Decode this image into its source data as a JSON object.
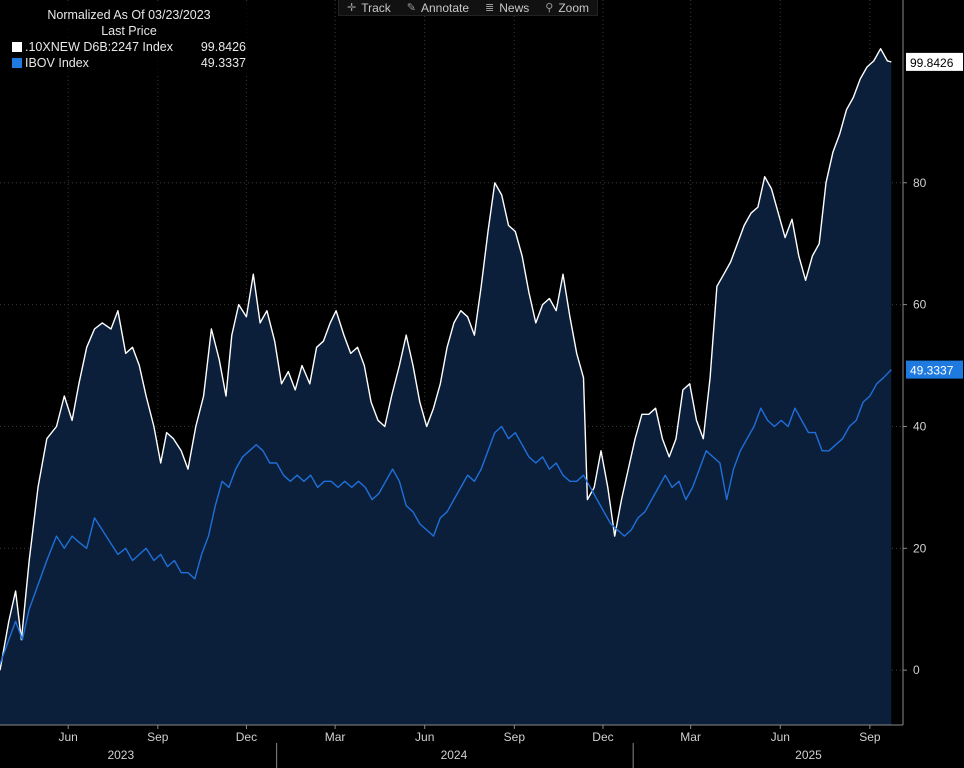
{
  "toolbar": {
    "items": [
      {
        "label": "Track",
        "icon": "crosshair-icon"
      },
      {
        "label": "Annotate",
        "icon": "pencil-icon"
      },
      {
        "label": "News",
        "icon": "news-icon"
      },
      {
        "label": "Zoom",
        "icon": "magnifier-icon"
      }
    ]
  },
  "legend": {
    "header": "Normalized As Of 03/23/2023",
    "subheader": "Last Price",
    "entries": [
      {
        "name": ".10XNEW D6B:2247 Index",
        "value": "99.8426",
        "color": "#ffffff"
      },
      {
        "name": "IBOV Index",
        "value": "49.3337",
        "color": "#1f7ae0"
      }
    ]
  },
  "colors": {
    "background": "#000000",
    "area_fill": "#0b1f3a",
    "series1_line": "#ffffff",
    "series2_line": "#1f6fd8",
    "badge2_bg": "#1f7ae0",
    "grid": "#3a3a3a"
  },
  "chart_data": {
    "type": "area",
    "title": "",
    "xlabel": "",
    "ylabel": "",
    "ylim": [
      -9,
      110
    ],
    "xlim": [
      "2023-03-23",
      "2025-10-05"
    ],
    "grid": true,
    "legend_position": "top-left",
    "y_ticks": [
      0,
      20,
      40,
      60,
      80
    ],
    "x_ticks": [
      {
        "label": "Jun",
        "date": "2023-06-01"
      },
      {
        "label": "Sep",
        "date": "2023-09-01"
      },
      {
        "label": "Dec",
        "date": "2023-12-01"
      },
      {
        "label": "Mar",
        "date": "2024-03-01"
      },
      {
        "label": "Jun",
        "date": "2024-06-01"
      },
      {
        "label": "Sep",
        "date": "2024-09-01"
      },
      {
        "label": "Dec",
        "date": "2024-12-01"
      },
      {
        "label": "Mar",
        "date": "2025-03-01"
      },
      {
        "label": "Jun",
        "date": "2025-06-01"
      },
      {
        "label": "Sep",
        "date": "2025-09-01"
      }
    ],
    "year_labels": [
      {
        "label": "2023",
        "date": "2023-07-25"
      },
      {
        "label": "2024",
        "date": "2024-07-01"
      },
      {
        "label": "2025",
        "date": "2025-06-30"
      }
    ],
    "year_separators": [
      "2024-01-01",
      "2025-01-01"
    ],
    "last_value_labels": [
      "99.8426",
      "49.3337"
    ],
    "series": [
      {
        "name": ".10XNEW D6B:2247 Index",
        "points": [
          [
            "2023-03-23",
            0
          ],
          [
            "2023-04-01",
            8
          ],
          [
            "2023-04-08",
            13
          ],
          [
            "2023-04-14",
            5
          ],
          [
            "2023-04-22",
            18
          ],
          [
            "2023-05-01",
            30
          ],
          [
            "2023-05-10",
            38
          ],
          [
            "2023-05-20",
            40
          ],
          [
            "2023-05-28",
            45
          ],
          [
            "2023-06-05",
            41
          ],
          [
            "2023-06-12",
            47
          ],
          [
            "2023-06-20",
            53
          ],
          [
            "2023-06-28",
            56
          ],
          [
            "2023-07-06",
            57
          ],
          [
            "2023-07-15",
            56
          ],
          [
            "2023-07-22",
            59
          ],
          [
            "2023-07-30",
            52
          ],
          [
            "2023-08-06",
            53
          ],
          [
            "2023-08-13",
            50
          ],
          [
            "2023-08-20",
            45
          ],
          [
            "2023-08-28",
            40
          ],
          [
            "2023-09-04",
            34
          ],
          [
            "2023-09-10",
            39
          ],
          [
            "2023-09-17",
            38
          ],
          [
            "2023-09-25",
            36
          ],
          [
            "2023-10-02",
            33
          ],
          [
            "2023-10-10",
            40
          ],
          [
            "2023-10-18",
            45
          ],
          [
            "2023-10-26",
            56
          ],
          [
            "2023-11-03",
            51
          ],
          [
            "2023-11-10",
            45
          ],
          [
            "2023-11-16",
            55
          ],
          [
            "2023-11-23",
            60
          ],
          [
            "2023-12-01",
            58
          ],
          [
            "2023-12-08",
            65
          ],
          [
            "2023-12-15",
            57
          ],
          [
            "2023-12-22",
            59
          ],
          [
            "2023-12-30",
            54
          ],
          [
            "2024-01-06",
            47
          ],
          [
            "2024-01-13",
            49
          ],
          [
            "2024-01-20",
            46
          ],
          [
            "2024-01-27",
            50
          ],
          [
            "2024-02-04",
            47
          ],
          [
            "2024-02-11",
            53
          ],
          [
            "2024-02-18",
            54
          ],
          [
            "2024-02-25",
            57
          ],
          [
            "2024-03-02",
            59
          ],
          [
            "2024-03-10",
            55
          ],
          [
            "2024-03-17",
            52
          ],
          [
            "2024-03-24",
            53
          ],
          [
            "2024-03-31",
            50
          ],
          [
            "2024-04-07",
            44
          ],
          [
            "2024-04-14",
            41
          ],
          [
            "2024-04-21",
            40
          ],
          [
            "2024-04-28",
            45
          ],
          [
            "2024-05-06",
            50
          ],
          [
            "2024-05-13",
            55
          ],
          [
            "2024-05-20",
            50
          ],
          [
            "2024-05-27",
            44
          ],
          [
            "2024-06-03",
            40
          ],
          [
            "2024-06-10",
            43
          ],
          [
            "2024-06-17",
            47
          ],
          [
            "2024-06-24",
            53
          ],
          [
            "2024-07-01",
            57
          ],
          [
            "2024-07-08",
            59
          ],
          [
            "2024-07-15",
            58
          ],
          [
            "2024-07-22",
            55
          ],
          [
            "2024-07-29",
            63
          ],
          [
            "2024-08-05",
            72
          ],
          [
            "2024-08-12",
            80
          ],
          [
            "2024-08-19",
            78
          ],
          [
            "2024-08-26",
            73
          ],
          [
            "2024-09-02",
            72
          ],
          [
            "2024-09-09",
            68
          ],
          [
            "2024-09-16",
            62
          ],
          [
            "2024-09-23",
            57
          ],
          [
            "2024-09-30",
            60
          ],
          [
            "2024-10-07",
            61
          ],
          [
            "2024-10-14",
            59
          ],
          [
            "2024-10-21",
            65
          ],
          [
            "2024-10-28",
            58
          ],
          [
            "2024-11-04",
            52
          ],
          [
            "2024-11-11",
            48
          ],
          [
            "2024-11-15",
            28
          ],
          [
            "2024-11-22",
            30
          ],
          [
            "2024-11-29",
            36
          ],
          [
            "2024-12-06",
            30
          ],
          [
            "2024-12-13",
            22
          ],
          [
            "2024-12-20",
            28
          ],
          [
            "2024-12-27",
            33
          ],
          [
            "2025-01-03",
            38
          ],
          [
            "2025-01-10",
            42
          ],
          [
            "2025-01-17",
            42
          ],
          [
            "2025-01-24",
            43
          ],
          [
            "2025-01-31",
            38
          ],
          [
            "2025-02-07",
            35
          ],
          [
            "2025-02-14",
            38
          ],
          [
            "2025-02-21",
            46
          ],
          [
            "2025-02-28",
            47
          ],
          [
            "2025-03-07",
            41
          ],
          [
            "2025-03-14",
            38
          ],
          [
            "2025-03-21",
            48
          ],
          [
            "2025-03-28",
            63
          ],
          [
            "2025-04-04",
            65
          ],
          [
            "2025-04-11",
            67
          ],
          [
            "2025-04-18",
            70
          ],
          [
            "2025-04-25",
            73
          ],
          [
            "2025-05-02",
            75
          ],
          [
            "2025-05-09",
            76
          ],
          [
            "2025-05-16",
            81
          ],
          [
            "2025-05-23",
            79
          ],
          [
            "2025-05-30",
            75
          ],
          [
            "2025-06-06",
            71
          ],
          [
            "2025-06-13",
            74
          ],
          [
            "2025-06-20",
            68
          ],
          [
            "2025-06-27",
            64
          ],
          [
            "2025-07-04",
            68
          ],
          [
            "2025-07-11",
            70
          ],
          [
            "2025-07-18",
            80
          ],
          [
            "2025-07-25",
            85
          ],
          [
            "2025-08-01",
            88
          ],
          [
            "2025-08-08",
            92
          ],
          [
            "2025-08-15",
            94
          ],
          [
            "2025-08-22",
            97
          ],
          [
            "2025-08-29",
            99
          ],
          [
            "2025-09-05",
            100
          ],
          [
            "2025-09-12",
            102
          ],
          [
            "2025-09-19",
            100
          ],
          [
            "2025-09-23",
            99.8426
          ]
        ]
      },
      {
        "name": "IBOV Index",
        "points": [
          [
            "2023-03-23",
            1
          ],
          [
            "2023-04-01",
            5
          ],
          [
            "2023-04-08",
            8
          ],
          [
            "2023-04-15",
            5
          ],
          [
            "2023-04-22",
            10
          ],
          [
            "2023-05-01",
            14
          ],
          [
            "2023-05-10",
            18
          ],
          [
            "2023-05-20",
            22
          ],
          [
            "2023-05-28",
            20
          ],
          [
            "2023-06-05",
            22
          ],
          [
            "2023-06-12",
            21
          ],
          [
            "2023-06-20",
            20
          ],
          [
            "2023-06-28",
            25
          ],
          [
            "2023-07-06",
            23
          ],
          [
            "2023-07-14",
            21
          ],
          [
            "2023-07-22",
            19
          ],
          [
            "2023-07-30",
            20
          ],
          [
            "2023-08-06",
            18
          ],
          [
            "2023-08-13",
            19
          ],
          [
            "2023-08-20",
            20
          ],
          [
            "2023-08-28",
            18
          ],
          [
            "2023-09-04",
            19
          ],
          [
            "2023-09-11",
            17
          ],
          [
            "2023-09-18",
            18
          ],
          [
            "2023-09-25",
            16
          ],
          [
            "2023-10-02",
            16
          ],
          [
            "2023-10-09",
            15
          ],
          [
            "2023-10-16",
            19
          ],
          [
            "2023-10-23",
            22
          ],
          [
            "2023-10-30",
            27
          ],
          [
            "2023-11-06",
            31
          ],
          [
            "2023-11-13",
            30
          ],
          [
            "2023-11-20",
            33
          ],
          [
            "2023-11-27",
            35
          ],
          [
            "2023-12-04",
            36
          ],
          [
            "2023-12-11",
            37
          ],
          [
            "2023-12-18",
            36
          ],
          [
            "2023-12-25",
            34
          ],
          [
            "2024-01-01",
            34
          ],
          [
            "2024-01-08",
            32
          ],
          [
            "2024-01-15",
            31
          ],
          [
            "2024-01-22",
            32
          ],
          [
            "2024-01-29",
            31
          ],
          [
            "2024-02-05",
            32
          ],
          [
            "2024-02-12",
            30
          ],
          [
            "2024-02-19",
            31
          ],
          [
            "2024-02-26",
            31
          ],
          [
            "2024-03-04",
            30
          ],
          [
            "2024-03-11",
            31
          ],
          [
            "2024-03-18",
            30
          ],
          [
            "2024-03-25",
            31
          ],
          [
            "2024-04-01",
            30
          ],
          [
            "2024-04-08",
            28
          ],
          [
            "2024-04-15",
            29
          ],
          [
            "2024-04-22",
            31
          ],
          [
            "2024-04-29",
            33
          ],
          [
            "2024-05-06",
            31
          ],
          [
            "2024-05-13",
            27
          ],
          [
            "2024-05-20",
            26
          ],
          [
            "2024-05-27",
            24
          ],
          [
            "2024-06-03",
            23
          ],
          [
            "2024-06-10",
            22
          ],
          [
            "2024-06-17",
            25
          ],
          [
            "2024-06-24",
            26
          ],
          [
            "2024-07-01",
            28
          ],
          [
            "2024-07-08",
            30
          ],
          [
            "2024-07-15",
            32
          ],
          [
            "2024-07-22",
            31
          ],
          [
            "2024-07-29",
            33
          ],
          [
            "2024-08-05",
            36
          ],
          [
            "2024-08-12",
            39
          ],
          [
            "2024-08-19",
            40
          ],
          [
            "2024-08-26",
            38
          ],
          [
            "2024-09-02",
            39
          ],
          [
            "2024-09-09",
            37
          ],
          [
            "2024-09-16",
            35
          ],
          [
            "2024-09-23",
            34
          ],
          [
            "2024-09-30",
            35
          ],
          [
            "2024-10-07",
            33
          ],
          [
            "2024-10-14",
            34
          ],
          [
            "2024-10-21",
            32
          ],
          [
            "2024-10-28",
            31
          ],
          [
            "2024-11-04",
            31
          ],
          [
            "2024-11-11",
            32
          ],
          [
            "2024-11-18",
            30
          ],
          [
            "2024-11-25",
            28
          ],
          [
            "2024-12-02",
            26
          ],
          [
            "2024-12-09",
            24
          ],
          [
            "2024-12-16",
            23
          ],
          [
            "2024-12-23",
            22
          ],
          [
            "2024-12-30",
            23
          ],
          [
            "2025-01-06",
            25
          ],
          [
            "2025-01-13",
            26
          ],
          [
            "2025-01-20",
            28
          ],
          [
            "2025-01-27",
            30
          ],
          [
            "2025-02-03",
            32
          ],
          [
            "2025-02-10",
            30
          ],
          [
            "2025-02-17",
            31
          ],
          [
            "2025-02-24",
            28
          ],
          [
            "2025-03-03",
            30
          ],
          [
            "2025-03-10",
            33
          ],
          [
            "2025-03-17",
            36
          ],
          [
            "2025-03-24",
            35
          ],
          [
            "2025-03-31",
            34
          ],
          [
            "2025-04-07",
            28
          ],
          [
            "2025-04-14",
            33
          ],
          [
            "2025-04-21",
            36
          ],
          [
            "2025-04-28",
            38
          ],
          [
            "2025-05-05",
            40
          ],
          [
            "2025-05-12",
            43
          ],
          [
            "2025-05-19",
            41
          ],
          [
            "2025-05-26",
            40
          ],
          [
            "2025-06-02",
            41
          ],
          [
            "2025-06-09",
            40
          ],
          [
            "2025-06-16",
            43
          ],
          [
            "2025-06-23",
            41
          ],
          [
            "2025-06-30",
            39
          ],
          [
            "2025-07-07",
            39
          ],
          [
            "2025-07-14",
            36
          ],
          [
            "2025-07-21",
            36
          ],
          [
            "2025-07-28",
            37
          ],
          [
            "2025-08-04",
            38
          ],
          [
            "2025-08-11",
            40
          ],
          [
            "2025-08-18",
            41
          ],
          [
            "2025-08-25",
            44
          ],
          [
            "2025-09-01",
            45
          ],
          [
            "2025-09-08",
            47
          ],
          [
            "2025-09-15",
            48
          ],
          [
            "2025-09-23",
            49.3337
          ]
        ]
      }
    ]
  }
}
